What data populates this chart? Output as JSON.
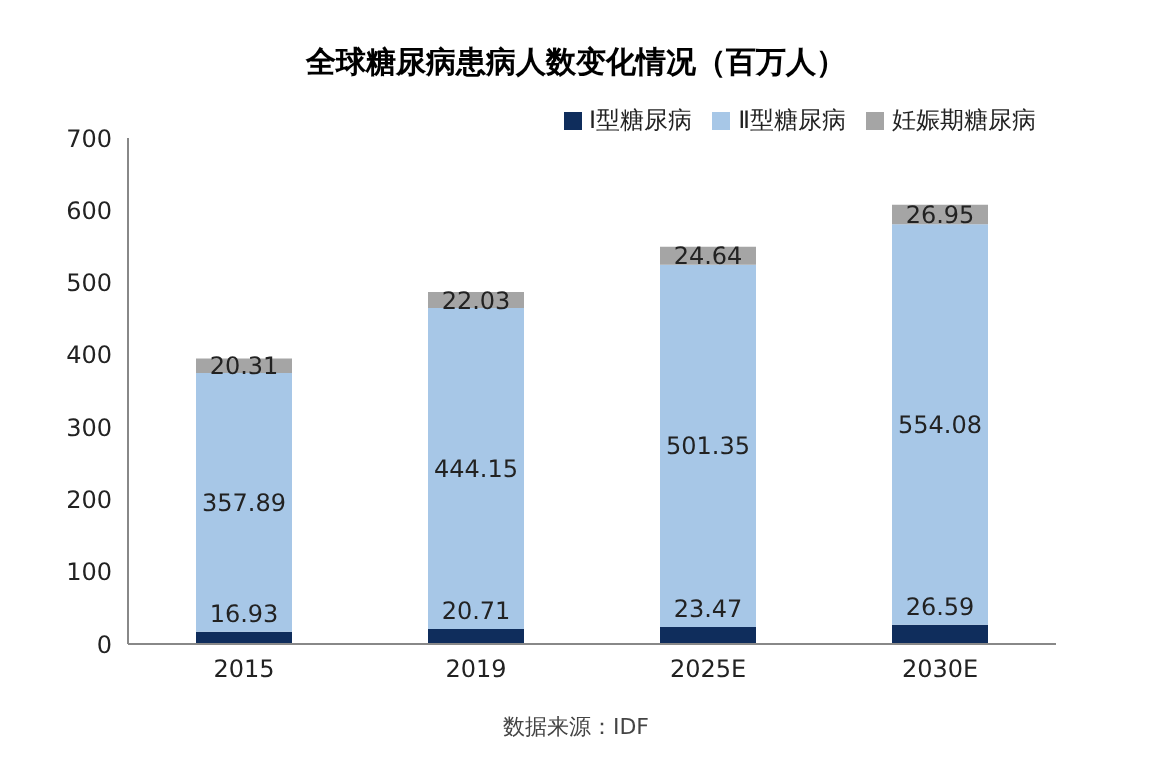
{
  "chart_data": {
    "type": "bar",
    "title": "全球糖尿病患病人数变化情况（百万人）",
    "categories": [
      "2015",
      "2019",
      "2025E",
      "2030E"
    ],
    "series": [
      {
        "name": "Ⅰ型糖尿病",
        "color": "#0f2d5c",
        "values": [
          16.93,
          20.71,
          23.47,
          26.59
        ]
      },
      {
        "name": "Ⅱ型糖尿病",
        "color": "#a7c7e7",
        "values": [
          357.89,
          444.15,
          501.35,
          554.08
        ]
      },
      {
        "name": "妊娠期糖尿病",
        "color": "#a5a5a5",
        "values": [
          20.31,
          22.03,
          24.64,
          26.95
        ]
      }
    ],
    "stacked": true,
    "ylim": [
      0,
      700
    ],
    "yticks": [
      0,
      100,
      200,
      300,
      400,
      500,
      600,
      700
    ],
    "legend": "top right",
    "data_labels": true,
    "annotations": [
      "数据来源：IDF"
    ]
  }
}
